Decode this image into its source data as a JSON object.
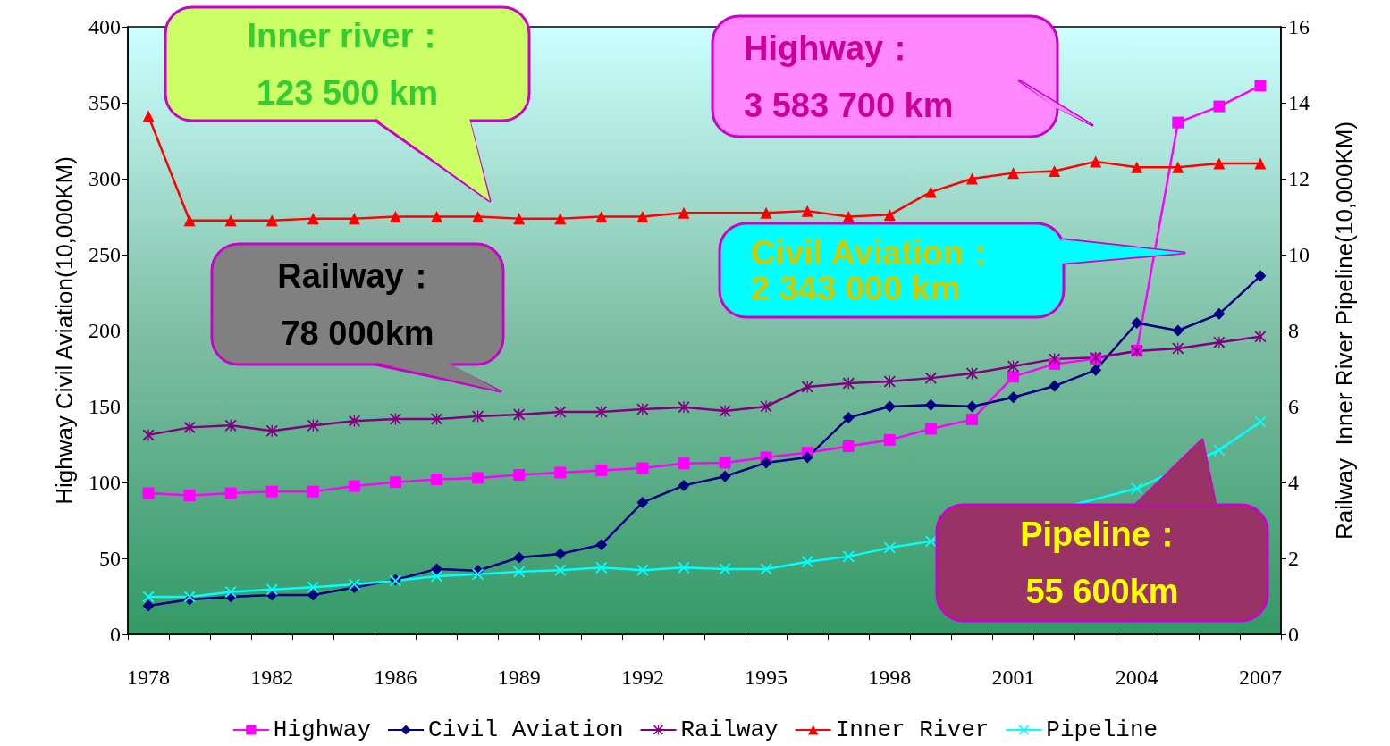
{
  "chart_data": {
    "type": "line",
    "ylabel": "Highway Civil Aviation(10,000KM)",
    "y2label": "Railway  Inner River Pipeline(10,000KM)",
    "categories": [
      "1978",
      null,
      null,
      "1982",
      null,
      null,
      "1986",
      null,
      null,
      "1989",
      null,
      null,
      "1992",
      null,
      null,
      "1995",
      null,
      null,
      "1998",
      null,
      null,
      "2001",
      null,
      null,
      "2004",
      null,
      null,
      "2007"
    ],
    "ylim": [
      0,
      400
    ],
    "yticks": [
      0,
      50,
      100,
      150,
      200,
      250,
      300,
      350,
      400
    ],
    "y2lim": [
      0,
      16
    ],
    "y2ticks": [
      0,
      2,
      4,
      6,
      8,
      10,
      12,
      14,
      16
    ],
    "legend": "bottom",
    "grid": false,
    "series": [
      {
        "name": "Highway",
        "color": "#ff00ff",
        "marker": "square",
        "values": [
          92.9,
          91.4,
          92.9,
          94,
          94,
          97.6,
          100.2,
          102,
          103,
          105,
          106.5,
          108,
          109.4,
          112.5,
          113,
          116.5,
          119.6,
          123.8,
          128,
          135.3,
          141.4,
          169.6,
          178,
          181.4,
          186.8,
          337,
          347.6,
          361.2
        ]
      },
      {
        "name": "Civil Aviation",
        "color": "#000080",
        "marker": "diamond",
        "values": [
          18.8,
          23,
          24.7,
          25.9,
          25.9,
          30.9,
          35.9,
          43,
          41.9,
          50.6,
          52.9,
          59,
          86.8,
          98,
          104,
          113,
          116.5,
          142.6,
          150,
          151,
          150,
          156,
          163.5,
          174,
          205,
          200,
          211,
          236
        ]
      },
      {
        "name": "Railway",
        "color": "#800080",
        "marker": "star",
        "axis": "y2",
        "values": [
          5.25,
          5.45,
          5.5,
          5.36,
          5.5,
          5.62,
          5.67,
          5.67,
          5.74,
          5.79,
          5.86,
          5.86,
          5.93,
          5.98,
          5.88,
          6.0,
          6.52,
          6.61,
          6.66,
          6.75,
          6.87,
          7.06,
          7.25,
          7.29,
          7.46,
          7.53,
          7.69,
          7.84
        ]
      },
      {
        "name": "Inner River",
        "color": "#ff0000",
        "marker": "triangle",
        "axis": "y2",
        "values": [
          13.65,
          10.9,
          10.9,
          10.9,
          10.95,
          10.95,
          11.0,
          11.0,
          11.0,
          10.95,
          10.95,
          11.0,
          11.0,
          11.1,
          null,
          11.1,
          11.15,
          11.0,
          11.05,
          11.65,
          12.0,
          12.15,
          12.2,
          12.45,
          12.3,
          12.3,
          12.4,
          12.4
        ]
      },
      {
        "name": "Pipeline",
        "color": "#00ffff",
        "marker": "cross",
        "axis": "y2",
        "values": [
          0.99,
          0.99,
          1.12,
          1.18,
          1.24,
          1.32,
          1.41,
          1.53,
          1.58,
          1.65,
          1.69,
          1.76,
          1.69,
          1.76,
          1.72,
          1.72,
          1.91,
          2.05,
          2.28,
          2.45,
          null,
          null,
          null,
          null,
          3.84,
          null,
          4.85,
          5.6
        ]
      }
    ],
    "annotations": [
      "Inner river：\n123 500 km",
      "Highway：\n3 583 700 km",
      "Railway：\n78 000km",
      "Civil Aviation：\n2 343 000 km",
      "Pipeline：\n55 600km"
    ]
  }
}
